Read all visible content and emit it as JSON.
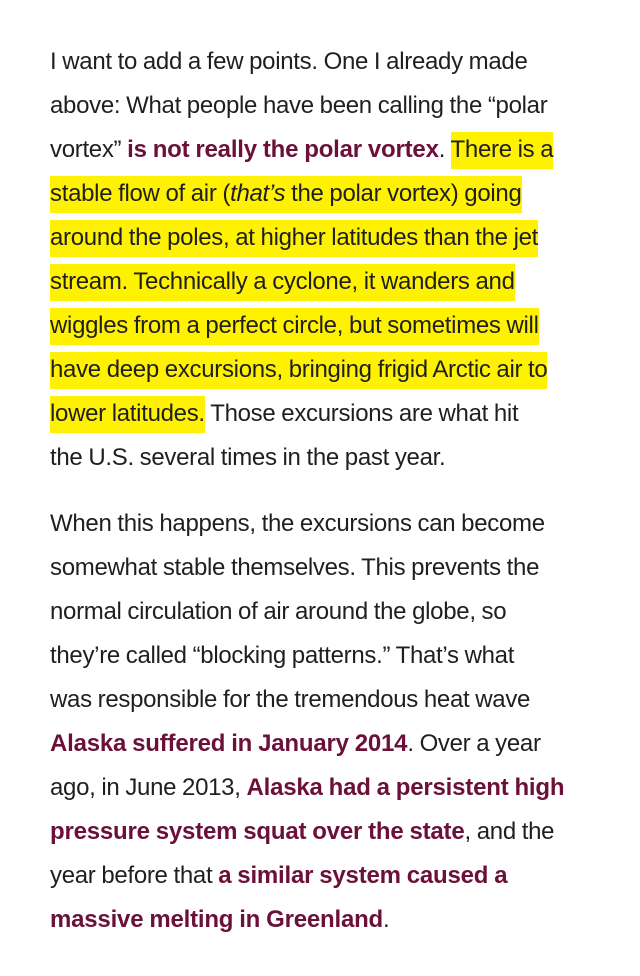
{
  "p1": {
    "l1": "I want to add a few points. One I already made",
    "l2": "above: What people have been calling the “polar",
    "l3_a": "vortex” ",
    "l3_link": "is not really the polar vortex",
    "l3_b": ". ",
    "l3_hl": "There is a",
    "l4_a": "stable flow of air (",
    "l4_em": "that’s",
    "l4_b": " the polar vortex) going",
    "l5": "around the poles, at higher latitudes than the jet",
    "l6": "stream. Technically a cyclone, it wanders and",
    "l7": "wiggles from a perfect circle, but sometimes will",
    "l8": "have deep excursions, bringing frigid Arctic air to",
    "l9_hl": "lower latitudes.",
    "l9_b": " Those excursions are what hit",
    "l10": "the U.S. several times in the past year."
  },
  "p2": {
    "l1": "When this happens, the excursions can become",
    "l2": "somewhat stable themselves. This prevents the",
    "l3": "normal circulation of air around the globe, so",
    "l4": "they’re called “blocking patterns.” That’s what",
    "l5": "was responsible for the tremendous heat wave",
    "l6_link": "Alaska suffered in January 2014",
    "l6_b": ". Over a year",
    "l7_a": "ago, in June 2013, ",
    "l7_link": "Alaska had a persistent high",
    "l8_link": "pressure system squat over the state",
    "l8_b": ", and the",
    "l9_a": "year before that ",
    "l9_link": "a similar system caused a",
    "l10_link": "massive melting in Greenland",
    "l10_b": "."
  },
  "colors": {
    "text": "#1f1f1f",
    "link": "#6b1039",
    "highlight": "#fff200",
    "background": "#ffffff"
  }
}
